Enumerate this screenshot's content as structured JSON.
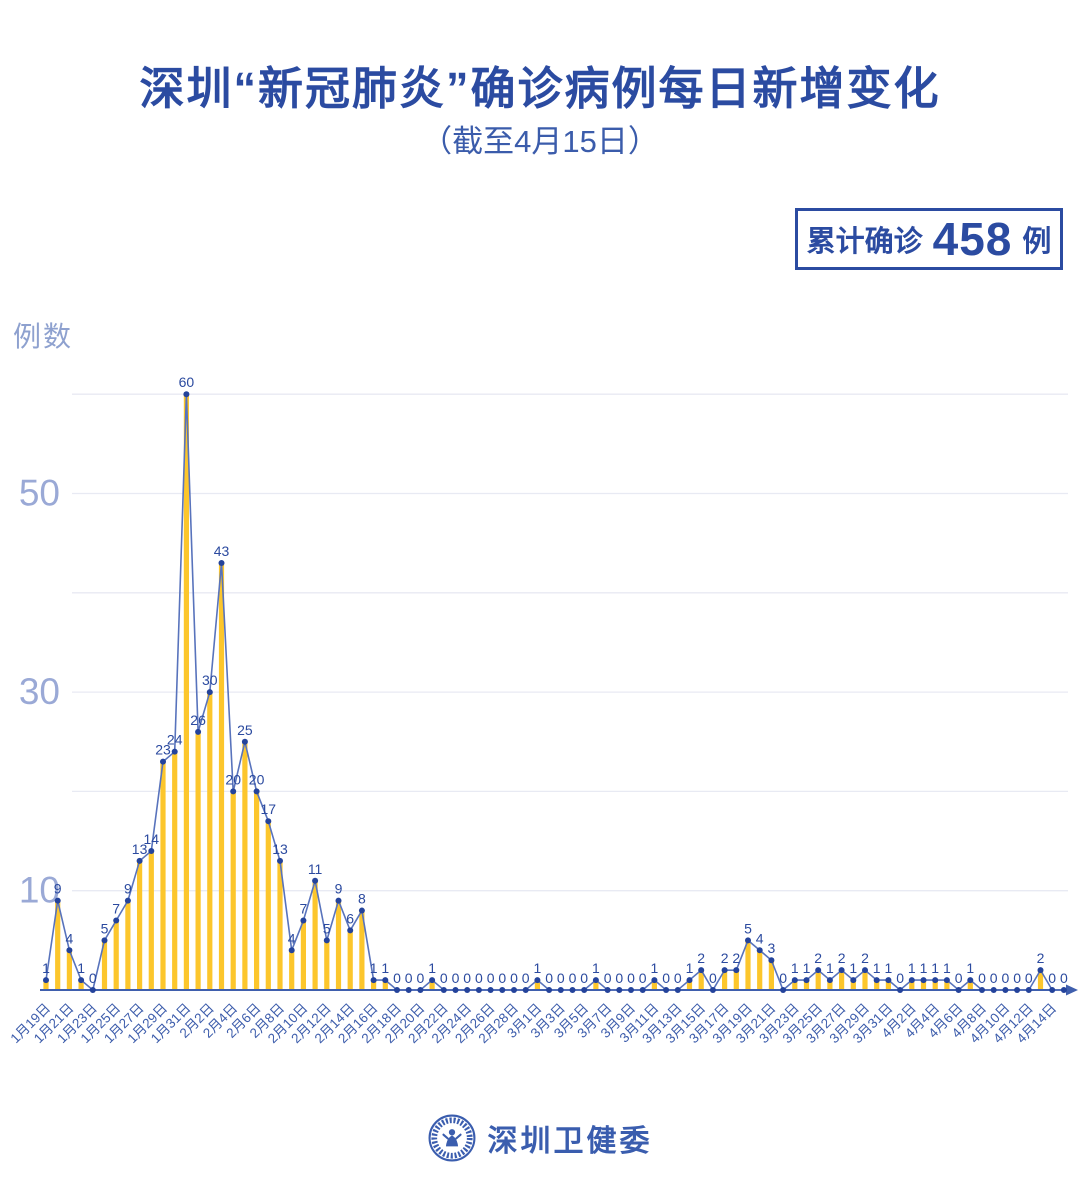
{
  "title": "深圳“新冠肺炎”确诊病例每日新增变化",
  "subtitle": "（截至4月15日）",
  "badge": {
    "prefix": "累计确诊",
    "number": "458",
    "suffix": "例"
  },
  "y_axis_title": "例数",
  "footer": {
    "org": "深圳卫健委",
    "logo": "shenzhen-health-commission-emblem"
  },
  "colors": {
    "title_blue": "#2b4ba1",
    "bar_yellow": "#fcc62c",
    "line_blue": "#5873bc",
    "dot_navy": "#24439b",
    "value_label_blue": "#2b4a9f",
    "axis_blue": "#3f5fad",
    "x_label_blue": "#3c5cab",
    "y_tick_blue": "#9aa9d6",
    "gridline": "#e8eaf3"
  },
  "chart_data": {
    "type": "bar",
    "overlay": "line",
    "title": "深圳“新冠肺炎”确诊病例每日新增变化（截至4月15日）",
    "xlabel": "",
    "ylabel": "例数",
    "yticks": [
      10,
      30,
      50
    ],
    "grid_values": [
      10,
      20,
      30,
      40,
      50,
      60
    ],
    "ylim": [
      0,
      62
    ],
    "legend": "none",
    "label_every": 2,
    "x_tick_labels": [
      "1月19日",
      "1月21日",
      "1月23日",
      "1月25日",
      "1月27日",
      "1月29日",
      "1月31日",
      "2月2日",
      "2月4日",
      "2月6日",
      "2月8日",
      "2月10日",
      "2月12日",
      "2月14日",
      "2月16日",
      "2月18日",
      "2月20日",
      "2月22日",
      "2月24日",
      "2月26日",
      "2月28日",
      "3月1日",
      "3月3日",
      "3月5日",
      "3月7日",
      "3月9日",
      "3月11日",
      "3月13日",
      "3月15日",
      "3月17日",
      "3月19日",
      "3月21日",
      "3月23日",
      "3月25日",
      "3月27日",
      "3月29日",
      "3月31日",
      "4月2日",
      "4月4日",
      "4月6日",
      "4月8日",
      "4月10日",
      "4月12日",
      "4月14日"
    ],
    "values": [
      1,
      9,
      4,
      1,
      0,
      5,
      7,
      9,
      13,
      14,
      23,
      24,
      60,
      26,
      30,
      43,
      20,
      25,
      20,
      17,
      13,
      4,
      7,
      11,
      5,
      9,
      6,
      8,
      1,
      1,
      0,
      0,
      0,
      1,
      0,
      0,
      0,
      0,
      0,
      0,
      0,
      0,
      1,
      0,
      0,
      0,
      0,
      1,
      0,
      0,
      0,
      0,
      1,
      0,
      0,
      1,
      2,
      0,
      2,
      2,
      5,
      4,
      3,
      0,
      1,
      1,
      2,
      1,
      2,
      1,
      2,
      1,
      1,
      0,
      1,
      1,
      1,
      1,
      0,
      1,
      0,
      0,
      0,
      0,
      0,
      2,
      0,
      0
    ],
    "total": 458
  }
}
